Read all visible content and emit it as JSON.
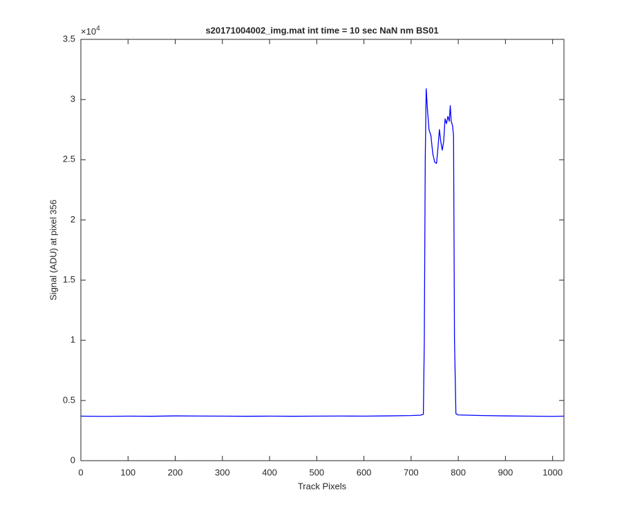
{
  "chart_data": {
    "type": "line",
    "title": "s20171004002_img.mat int time = 10 sec  NaN nm BS01",
    "x_label": "Track Pixels",
    "y_label": "Signal (ADU) at pixel 356",
    "y_multiplier": {
      "base": "×10",
      "power": "4"
    },
    "x": [
      0,
      50,
      100,
      150,
      200,
      250,
      300,
      350,
      400,
      450,
      500,
      550,
      600,
      650,
      700,
      720,
      726,
      728,
      730,
      732,
      735,
      738,
      742,
      746,
      750,
      754,
      757,
      760,
      763,
      766,
      769,
      772,
      775,
      778,
      781,
      783,
      785,
      788,
      790,
      792,
      795,
      800,
      850,
      900,
      950,
      1000,
      1024
    ],
    "values": [
      3700,
      3680,
      3700,
      3690,
      3720,
      3710,
      3700,
      3690,
      3700,
      3690,
      3700,
      3710,
      3700,
      3720,
      3750,
      3780,
      3850,
      10000,
      25000,
      30900,
      29000,
      27500,
      27000,
      25500,
      24800,
      24700,
      26000,
      27500,
      26500,
      25800,
      26500,
      28400,
      28000,
      28600,
      28200,
      29500,
      28200,
      27800,
      27000,
      10000,
      3900,
      3800,
      3750,
      3720,
      3700,
      3680,
      3700
    ],
    "color": "#0000ff",
    "xlim": [
      0,
      1024
    ],
    "ylim": [
      0,
      35000
    ],
    "xticks": [
      0,
      100,
      200,
      300,
      400,
      500,
      600,
      700,
      800,
      900,
      1000
    ],
    "yticks": [
      {
        "value": 0,
        "label": "0"
      },
      {
        "value": 5000,
        "label": "0.5"
      },
      {
        "value": 10000,
        "label": "1"
      },
      {
        "value": 15000,
        "label": "1.5"
      },
      {
        "value": 20000,
        "label": "2"
      },
      {
        "value": 25000,
        "label": "2.5"
      },
      {
        "value": 30000,
        "label": "3"
      },
      {
        "value": 35000,
        "label": "3.5"
      }
    ],
    "grid": false
  }
}
